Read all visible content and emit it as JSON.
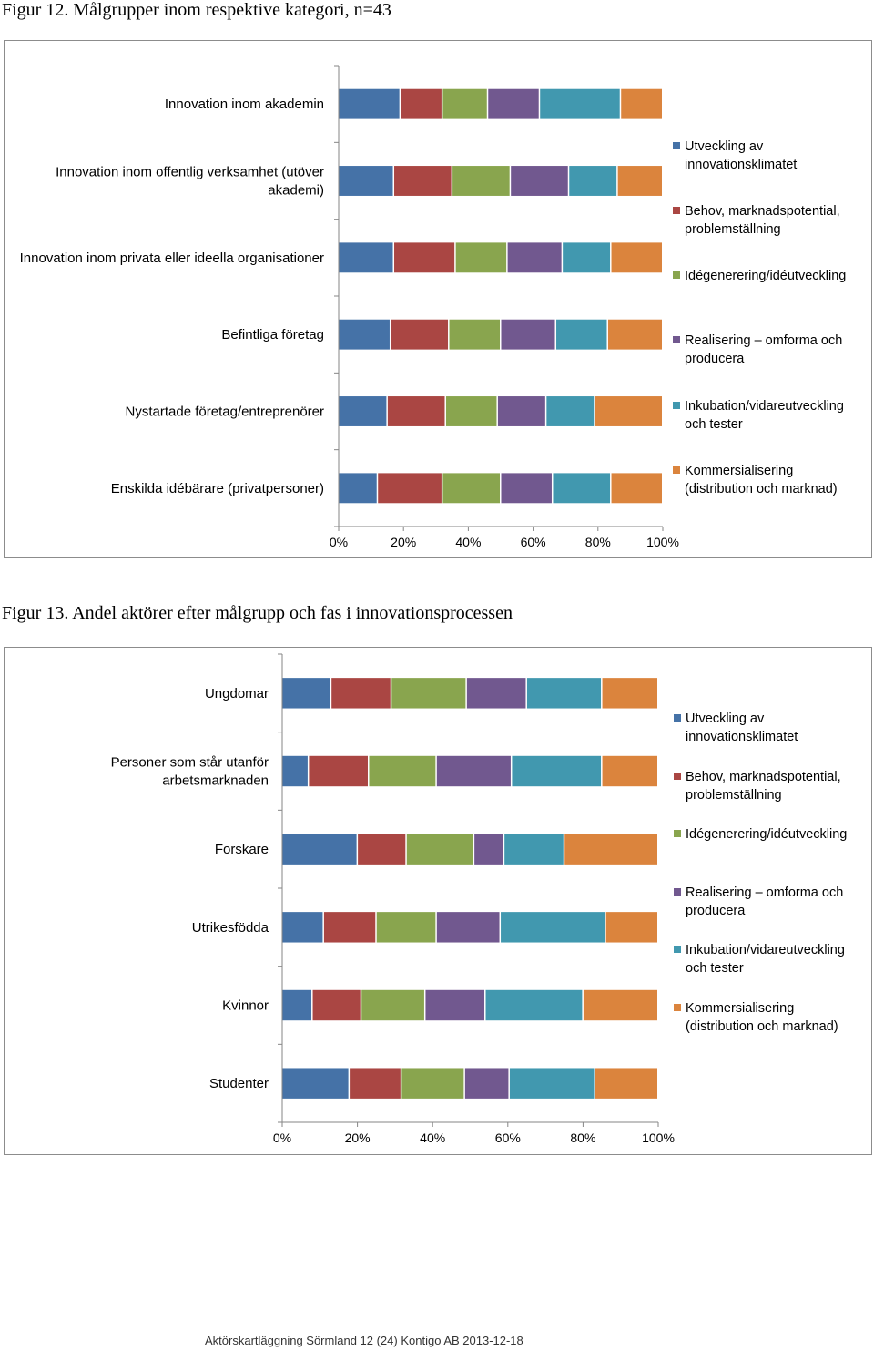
{
  "chart_data": [
    {
      "type": "bar",
      "orientation": "horizontal",
      "stacked": "percent",
      "title": "Figur 12. Målgrupper inom respektive kategori, n=43",
      "categories": [
        [
          "Innovation inom akademin"
        ],
        [
          "Innovation inom offentlig verksamhet (utöver",
          "akademi)"
        ],
        [
          "Innovation inom privata eller ideella organisationer"
        ],
        [
          "Befintliga företag"
        ],
        [
          "Nystartade företag/entreprenörer"
        ],
        [
          "Enskilda idébärare (privatpersoner)"
        ]
      ],
      "series": [
        {
          "name": [
            "Utveckling av",
            "innovationsklimatet"
          ],
          "color": "#4572A7",
          "values": [
            19,
            17,
            17,
            16,
            15,
            12
          ]
        },
        {
          "name": [
            "Behov, marknadspotential,",
            "problemställning"
          ],
          "color": "#AA4643",
          "values": [
            13,
            18,
            19,
            18,
            18,
            20
          ]
        },
        {
          "name": [
            "Idégenerering/idéutveckling"
          ],
          "color": "#89A54E",
          "values": [
            14,
            18,
            16,
            16,
            16,
            18
          ]
        },
        {
          "name": [
            "Realisering – omforma och",
            "producera"
          ],
          "color": "#71588F",
          "values": [
            16,
            18,
            17,
            17,
            15,
            16
          ]
        },
        {
          "name": [
            "Inkubation/vidareutveckling",
            "och tester"
          ],
          "color": "#4198AF",
          "values": [
            25,
            15,
            15,
            16,
            15,
            18
          ]
        },
        {
          "name": [
            "Kommersialisering",
            "(distribution och marknad)"
          ],
          "color": "#DB843D",
          "values": [
            13,
            14,
            16,
            17,
            21,
            16
          ]
        }
      ],
      "xlim": [
        0,
        100
      ],
      "xticks": [
        "0%",
        "20%",
        "40%",
        "60%",
        "80%",
        "100%"
      ],
      "legend": "right"
    },
    {
      "type": "bar",
      "orientation": "horizontal",
      "stacked": "percent",
      "title": "Figur 13. Andel aktörer efter målgrupp och fas i innovationsprocessen",
      "categories": [
        [
          "Ungdomar"
        ],
        [
          "Personer som står utanför",
          "arbetsmarknaden"
        ],
        [
          "Forskare"
        ],
        [
          "Utrikesfödda"
        ],
        [
          "Kvinnor"
        ],
        [
          "Studenter"
        ]
      ],
      "series": [
        {
          "name": [
            "Utveckling av",
            "innovationsklimatet"
          ],
          "color": "#4572A7",
          "values": [
            13,
            7,
            20,
            11,
            8,
            18
          ]
        },
        {
          "name": [
            "Behov, marknadspotential,",
            "problemställning"
          ],
          "color": "#AA4643",
          "values": [
            16,
            16,
            13,
            14,
            13,
            14
          ]
        },
        {
          "name": [
            "Idégenerering/idéutveckling"
          ],
          "color": "#89A54E",
          "values": [
            20,
            18,
            18,
            16,
            17,
            17
          ]
        },
        {
          "name": [
            "Realisering – omforma och",
            "producera"
          ],
          "color": "#71588F",
          "values": [
            16,
            20,
            8,
            17,
            16,
            12
          ]
        },
        {
          "name": [
            "Inkubation/vidareutveckling",
            "och tester"
          ],
          "color": "#4198AF",
          "values": [
            20,
            24,
            16,
            28,
            26,
            23
          ]
        },
        {
          "name": [
            "Kommersialisering",
            "(distribution och marknad)"
          ],
          "color": "#DB843D",
          "values": [
            15,
            15,
            25,
            14,
            20,
            17
          ]
        }
      ],
      "xlim": [
        0,
        100
      ],
      "xticks": [
        "0%",
        "20%",
        "40%",
        "60%",
        "80%",
        "100%"
      ],
      "legend": "right"
    }
  ],
  "footer": "Aktörskartläggning Sörmland 12 (24) Kontigo AB 2013-12-18"
}
